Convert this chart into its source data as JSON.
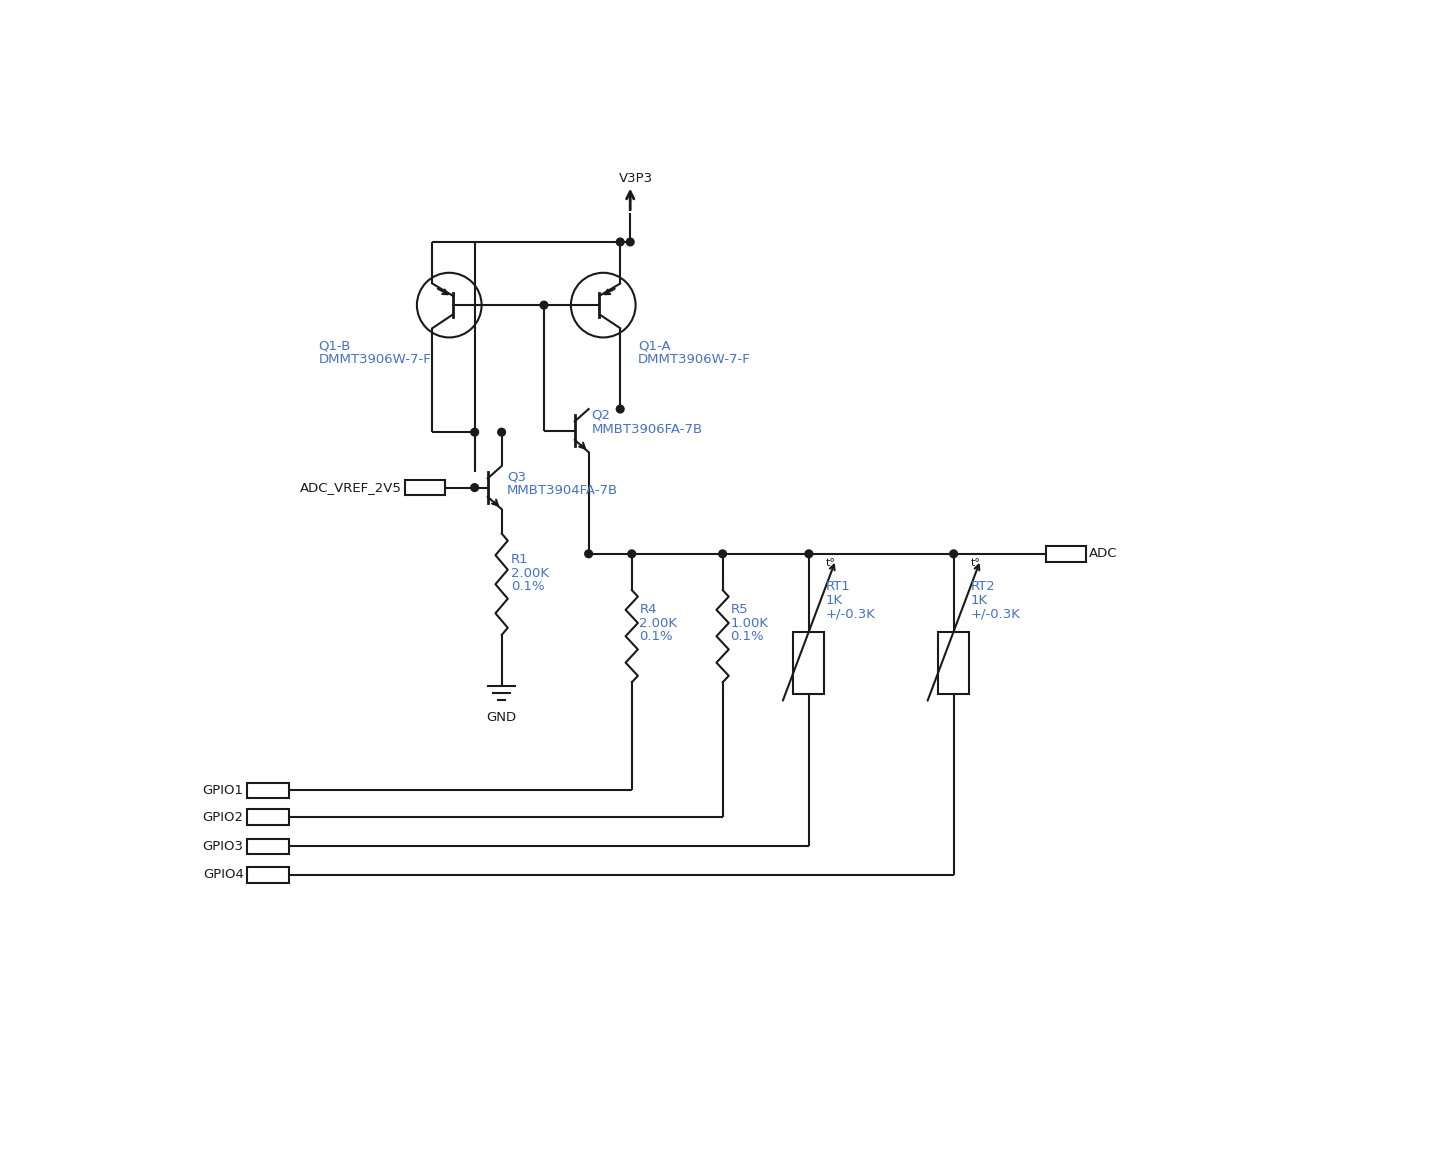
{
  "bg_color": "#ffffff",
  "line_color": "#1a1a1a",
  "text_blue": "#4472c4",
  "text_black": "#1a1a1a",
  "figsize": [
    14.4,
    11.63
  ],
  "dpi": 100,
  "labels": {
    "V3P3": "V3P3",
    "GND": "GND",
    "ADC": "ADC",
    "ADC_VREF": "ADC_VREF_2V5",
    "Q1B_1": "Q1-B",
    "Q1B_2": "DMMT3906W-7-F",
    "Q1A_1": "Q1-A",
    "Q1A_2": "DMMT3906W-7-F",
    "Q2_1": "Q2",
    "Q2_2": "MMBT3906FA-7B",
    "Q3_1": "Q3",
    "Q3_2": "MMBT3904FA-7B",
    "R1": [
      "R1",
      "2.00K",
      "0.1%"
    ],
    "R4": [
      "R4",
      "2.00K",
      "0.1%"
    ],
    "R5": [
      "R5",
      "1.00K",
      "0.1%"
    ],
    "RT1": [
      "RT1",
      "1K",
      "+/-0.3K"
    ],
    "RT2": [
      "RT2",
      "1K",
      "+/-0.3K"
    ],
    "GPIO": [
      "GPIO1",
      "GPIO2",
      "GPIO3",
      "GPIO4"
    ],
    "tc": "t°"
  }
}
